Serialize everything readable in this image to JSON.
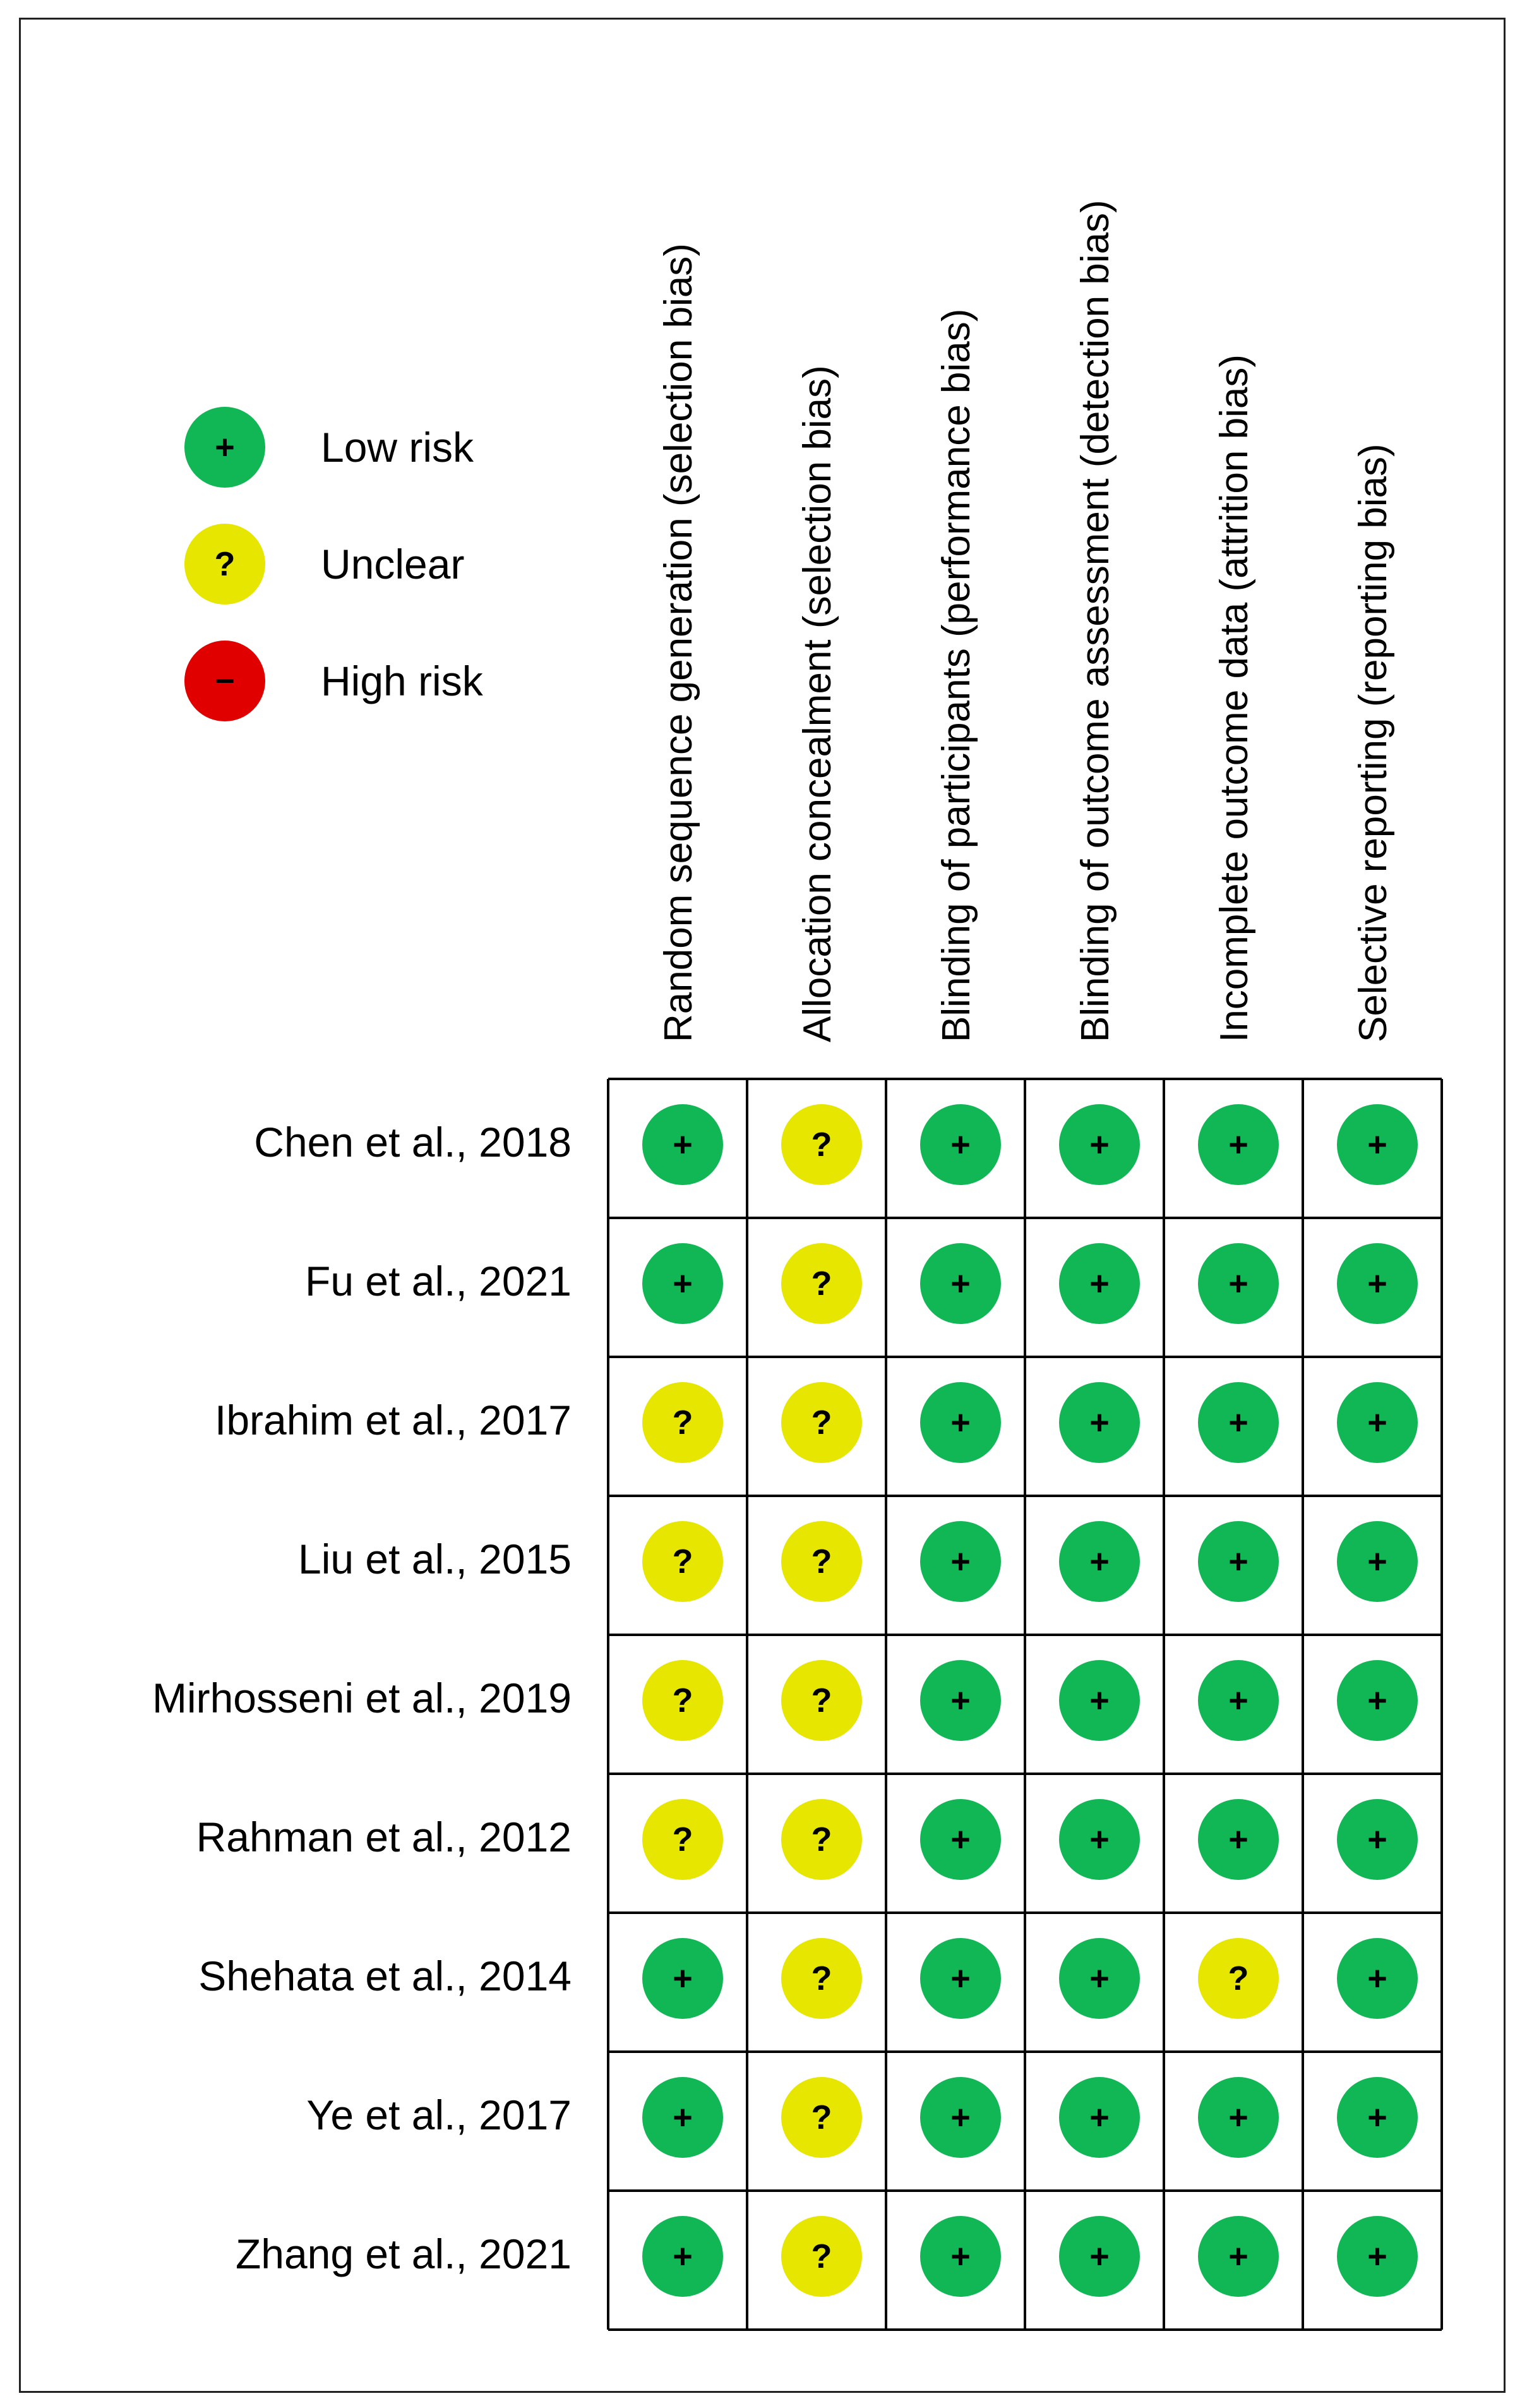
{
  "chart_data": {
    "type": "table",
    "legend": {
      "placement": "top-left",
      "items": [
        {
          "key": "low",
          "label": "Low risk",
          "symbol": "+",
          "color": "#11b755"
        },
        {
          "key": "unclear",
          "label": "Unclear",
          "symbol": "?",
          "color": "#e6e600"
        },
        {
          "key": "high",
          "label": "High risk",
          "symbol": "−",
          "color": "#e00000"
        }
      ]
    },
    "columns": [
      "Random sequence generation (selection bias)",
      "Allocation concealment (selection bias)",
      "Blinding of participants (performance bias)",
      "Blinding of outcome assessment (detection bias)",
      "Incomplete outcome data (attrition bias)",
      "Selective reporting (reporting bias)"
    ],
    "rows": [
      "Chen et al., 2018",
      "Fu et al., 2021",
      "Ibrahim et al., 2017",
      "Liu et al., 2015",
      "Mirhosseni et al., 2019",
      "Rahman et al., 2012",
      "Shehata et al., 2014",
      "Ye et al., 2017",
      "Zhang et al., 2021"
    ],
    "values": [
      [
        "low",
        "unclear",
        "low",
        "low",
        "low",
        "low"
      ],
      [
        "low",
        "unclear",
        "low",
        "low",
        "low",
        "low"
      ],
      [
        "unclear",
        "unclear",
        "low",
        "low",
        "low",
        "low"
      ],
      [
        "unclear",
        "unclear",
        "low",
        "low",
        "low",
        "low"
      ],
      [
        "unclear",
        "unclear",
        "low",
        "low",
        "low",
        "low"
      ],
      [
        "unclear",
        "unclear",
        "low",
        "low",
        "low",
        "low"
      ],
      [
        "low",
        "unclear",
        "low",
        "low",
        "unclear",
        "low"
      ],
      [
        "low",
        "unclear",
        "low",
        "low",
        "low",
        "low"
      ],
      [
        "low",
        "unclear",
        "low",
        "low",
        "low",
        "low"
      ]
    ]
  }
}
